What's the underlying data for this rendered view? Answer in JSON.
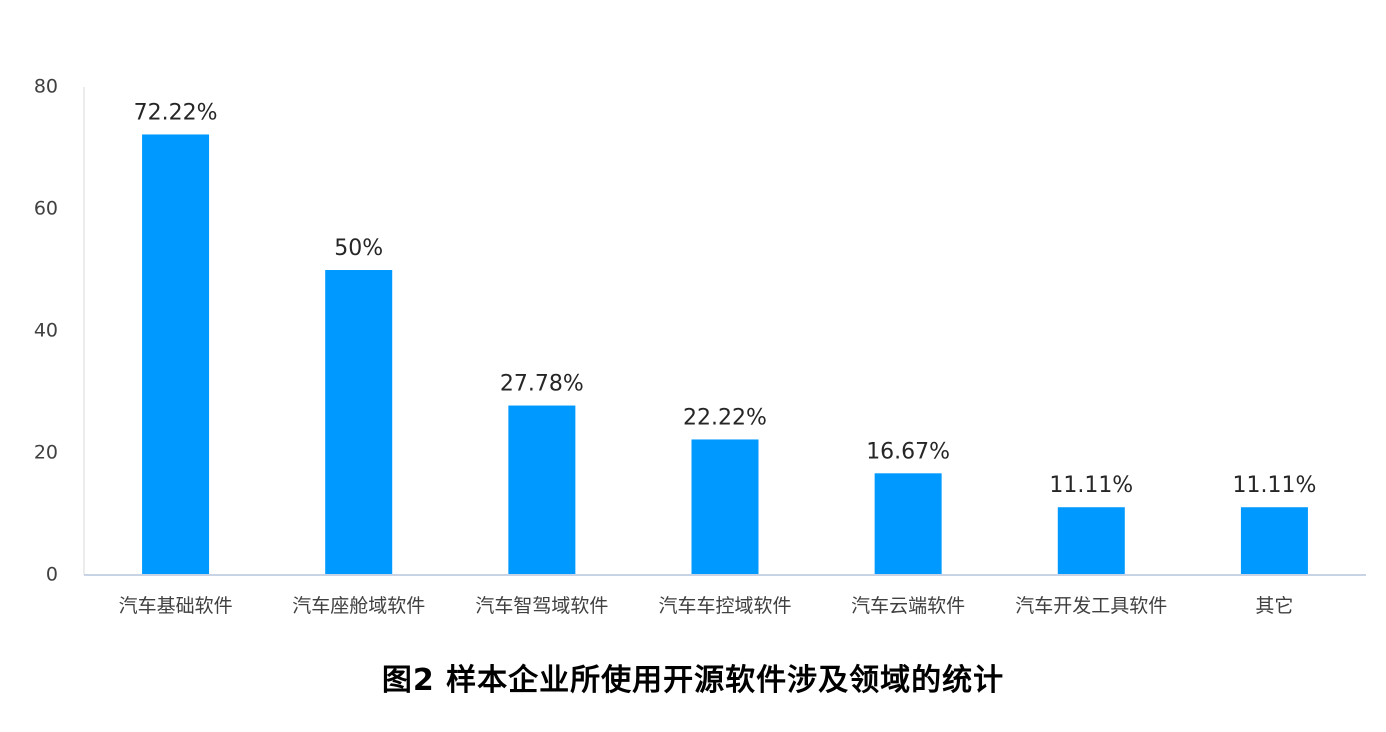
{
  "caption": "图2 样本企业所使用开源软件涉及领域的统计",
  "chart_data": {
    "type": "bar",
    "title": "",
    "xlabel": "",
    "ylabel": "",
    "ylim": [
      0,
      80
    ],
    "yticks": [
      0,
      20,
      40,
      60,
      80
    ],
    "grid": false,
    "legend": "none",
    "bar_color": "#0099FF",
    "categories": [
      "汽车基础软件",
      "汽车座舱域软件",
      "汽车智驾域软件",
      "汽车车控域软件",
      "汽车云端软件",
      "汽车开发工具软件",
      "其它"
    ],
    "values": [
      72.22,
      50,
      27.78,
      22.22,
      16.67,
      11.11,
      11.11
    ],
    "data_labels": [
      "72.22%",
      "50%",
      "27.78%",
      "22.22%",
      "16.67%",
      "11.11%",
      "11.11%"
    ]
  }
}
